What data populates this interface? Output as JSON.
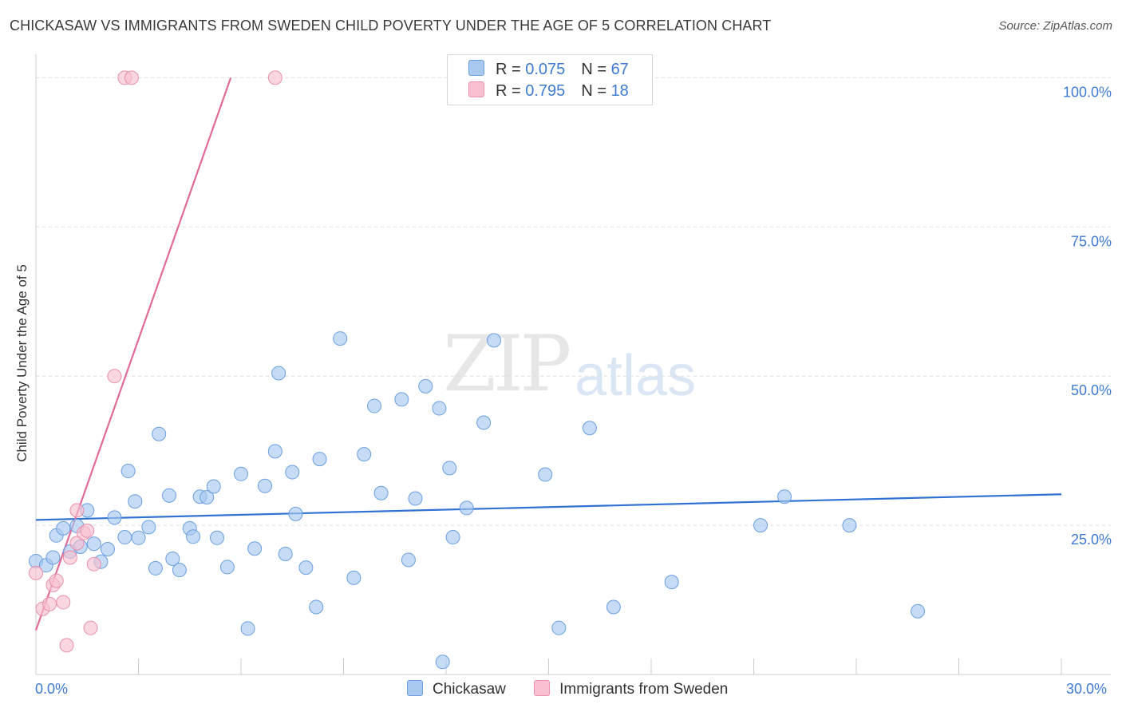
{
  "title": "CHICKASAW VS IMMIGRANTS FROM SWEDEN CHILD POVERTY UNDER THE AGE OF 5 CORRELATION CHART",
  "source": "Source: ZipAtlas.com",
  "watermark": {
    "zip": "ZIP",
    "atlas": "atlas"
  },
  "legend": {
    "r_label": "R = ",
    "n_label": "N = ",
    "series": [
      {
        "name": "Chickasaw",
        "r": "0.075",
        "n": "67",
        "color": "#a8c8f0",
        "border": "#6a9fe0"
      },
      {
        "name": "Immigrants from Sweden",
        "r": "0.795",
        "n": "18",
        "color": "#f8c0d0",
        "border": "#e890ac"
      }
    ]
  },
  "chart_data": {
    "type": "scatter",
    "title": "CHICKASAW VS IMMIGRANTS FROM SWEDEN CHILD POVERTY UNDER THE AGE OF 5 CORRELATION CHART",
    "xlabel": "",
    "ylabel": "Child Poverty Under the Age of 5",
    "xlim": [
      0,
      30
    ],
    "ylim": [
      0,
      105
    ],
    "x_tick_labels": [
      "0.0%",
      "30.0%"
    ],
    "y_ticks": [
      25,
      50,
      75,
      100
    ],
    "y_tick_labels": [
      "25.0%",
      "50.0%",
      "75.0%",
      "100.0%"
    ],
    "grid": true,
    "series": [
      {
        "name": "Chickasaw",
        "color": "#6a9fe0",
        "fill": "#a8c8f0",
        "trend": {
          "x": [
            0,
            30
          ],
          "y": [
            25.9,
            30.2
          ],
          "color": "#2f72d2"
        },
        "points": [
          [
            0.0,
            19.0
          ],
          [
            0.3,
            18.3
          ],
          [
            0.5,
            19.6
          ],
          [
            0.6,
            23.3
          ],
          [
            0.8,
            24.5
          ],
          [
            1.0,
            20.6
          ],
          [
            1.2,
            24.9
          ],
          [
            1.3,
            21.4
          ],
          [
            1.5,
            27.5
          ],
          [
            1.7,
            21.9
          ],
          [
            1.9,
            18.9
          ],
          [
            2.1,
            21.0
          ],
          [
            2.3,
            26.3
          ],
          [
            2.6,
            23.0
          ],
          [
            2.7,
            34.1
          ],
          [
            2.9,
            29.0
          ],
          [
            3.0,
            22.9
          ],
          [
            3.3,
            24.7
          ],
          [
            3.5,
            17.8
          ],
          [
            3.6,
            40.3
          ],
          [
            3.9,
            30.0
          ],
          [
            4.0,
            19.4
          ],
          [
            4.2,
            17.5
          ],
          [
            4.5,
            24.5
          ],
          [
            4.6,
            23.1
          ],
          [
            4.8,
            29.8
          ],
          [
            5.0,
            29.7
          ],
          [
            5.2,
            31.5
          ],
          [
            5.3,
            22.9
          ],
          [
            5.6,
            18.0
          ],
          [
            6.0,
            33.6
          ],
          [
            6.2,
            7.7
          ],
          [
            6.4,
            21.1
          ],
          [
            6.7,
            31.6
          ],
          [
            7.0,
            37.4
          ],
          [
            7.1,
            50.5
          ],
          [
            7.3,
            20.2
          ],
          [
            7.5,
            33.9
          ],
          [
            7.6,
            26.9
          ],
          [
            7.9,
            17.9
          ],
          [
            8.2,
            11.3
          ],
          [
            8.3,
            36.1
          ],
          [
            8.9,
            56.3
          ],
          [
            9.3,
            16.2
          ],
          [
            9.6,
            36.9
          ],
          [
            9.9,
            45.0
          ],
          [
            10.1,
            30.4
          ],
          [
            10.7,
            46.1
          ],
          [
            10.9,
            19.2
          ],
          [
            11.1,
            29.5
          ],
          [
            11.4,
            48.3
          ],
          [
            11.8,
            44.6
          ],
          [
            11.9,
            2.1
          ],
          [
            12.1,
            34.6
          ],
          [
            12.2,
            23.0
          ],
          [
            12.6,
            27.9
          ],
          [
            13.1,
            42.2
          ],
          [
            13.4,
            56.0
          ],
          [
            14.9,
            33.5
          ],
          [
            15.3,
            7.8
          ],
          [
            16.2,
            41.3
          ],
          [
            16.9,
            11.3
          ],
          [
            18.6,
            15.5
          ],
          [
            21.2,
            25.0
          ],
          [
            21.9,
            29.8
          ],
          [
            23.8,
            25.0
          ],
          [
            25.8,
            10.6
          ]
        ]
      },
      {
        "name": "Immigrants from Sweden",
        "color": "#e890ac",
        "fill": "#f8c0d0",
        "trend": {
          "x": [
            0,
            5.7
          ],
          "y": [
            7.4,
            100
          ],
          "color": "#e06b98"
        },
        "points": [
          [
            0.0,
            17.0
          ],
          [
            0.2,
            11.0
          ],
          [
            0.4,
            11.8
          ],
          [
            0.5,
            15.0
          ],
          [
            0.6,
            15.7
          ],
          [
            0.8,
            12.1
          ],
          [
            0.9,
            4.9
          ],
          [
            1.0,
            19.6
          ],
          [
            1.2,
            22.0
          ],
          [
            1.2,
            27.5
          ],
          [
            1.4,
            23.7
          ],
          [
            1.5,
            24.1
          ],
          [
            1.6,
            7.8
          ],
          [
            1.7,
            18.5
          ],
          [
            2.3,
            50.0
          ],
          [
            2.6,
            100.0
          ],
          [
            2.8,
            100.0
          ],
          [
            7.0,
            100.0
          ]
        ]
      }
    ]
  }
}
